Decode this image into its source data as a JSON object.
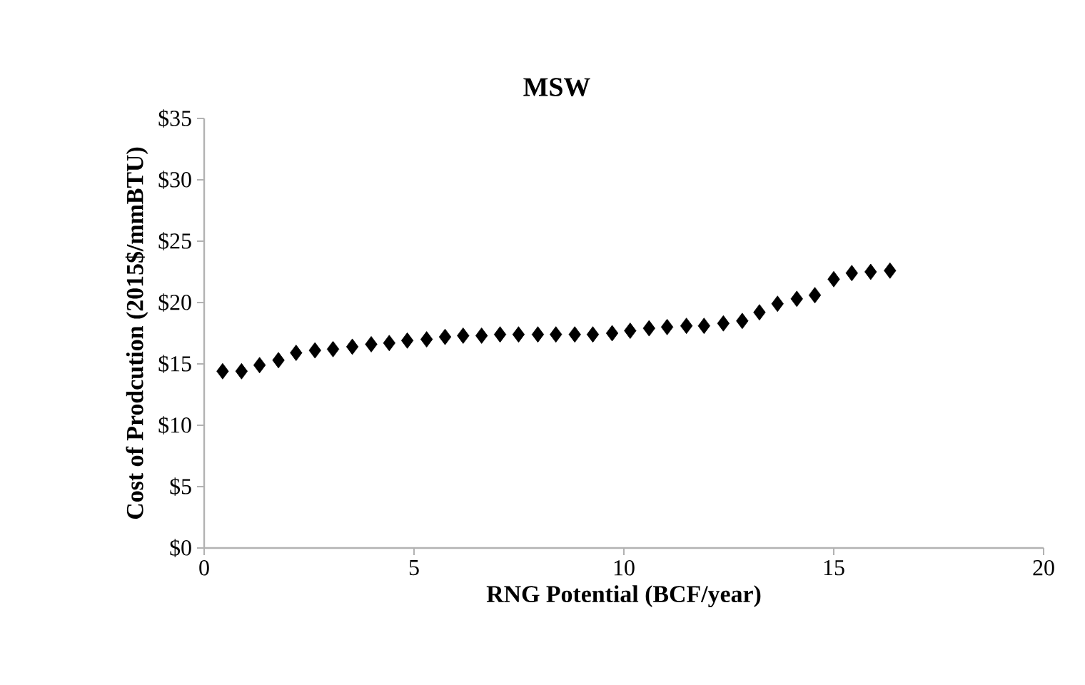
{
  "chart_data": {
    "type": "scatter",
    "title": "MSW",
    "xlabel": "RNG Potential (BCF/year)",
    "ylabel": "Cost of Prodcution (2015$/mmBTU)",
    "x": [
      0.44,
      0.89,
      1.32,
      1.77,
      2.19,
      2.64,
      3.07,
      3.53,
      3.98,
      4.41,
      4.84,
      5.3,
      5.74,
      6.17,
      6.61,
      7.05,
      7.49,
      7.95,
      8.38,
      8.83,
      9.26,
      9.72,
      10.15,
      10.6,
      11.03,
      11.49,
      11.91,
      12.37,
      12.82,
      13.23,
      13.66,
      14.12,
      14.55,
      15.0,
      15.43,
      15.88,
      16.34
    ],
    "values": [
      14.4,
      14.4,
      14.9,
      15.3,
      15.9,
      16.1,
      16.2,
      16.4,
      16.6,
      16.7,
      16.9,
      17.0,
      17.2,
      17.3,
      17.3,
      17.4,
      17.4,
      17.4,
      17.4,
      17.4,
      17.4,
      17.5,
      17.7,
      17.9,
      18.0,
      18.1,
      18.1,
      18.3,
      18.5,
      19.2,
      19.9,
      20.3,
      20.6,
      21.9,
      22.4,
      22.5,
      22.6
    ],
    "color": "#000000",
    "marker": "diamond",
    "xlim": [
      0,
      20
    ],
    "xticks": [
      0,
      5,
      10,
      15,
      20
    ],
    "ylim": [
      0,
      35
    ],
    "yticks": [
      {
        "value": 0,
        "label": "$0"
      },
      {
        "value": 5,
        "label": "$5"
      },
      {
        "value": 10,
        "label": "$10"
      },
      {
        "value": 15,
        "label": "$15"
      },
      {
        "value": 20,
        "label": "$20"
      },
      {
        "value": 25,
        "label": "$25"
      },
      {
        "value": 30,
        "label": "$30"
      },
      {
        "value": 35,
        "label": "$35"
      }
    ],
    "grid": false
  }
}
